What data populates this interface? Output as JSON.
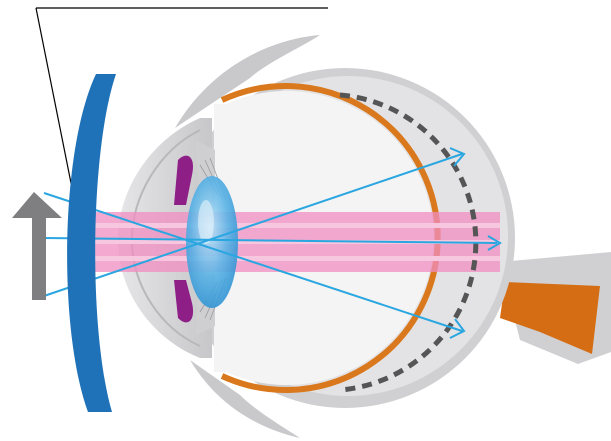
{
  "diagram": {
    "subject": "eye-cross-section-with-corrective-lens",
    "colors": {
      "background": "#ffffff",
      "sclera_outer": "#d0d0d2",
      "sclera_inner": "#ececed",
      "eye_interior": "#f4f4f5",
      "choroid": "#d9781c",
      "optic_nerve": "#d46d14",
      "iris": "#8e1f86",
      "lens": "#3fa4e0",
      "lens_highlight": "#bfe4f8",
      "corrective_lens": "#1f72b8",
      "light_band": "#f08ec0",
      "light_band_edge": "#f6bcd9",
      "ray": "#2aa6e0",
      "retina_dash": "#555555",
      "object_arrow": "#7f7f82",
      "leader_line": "#000000"
    },
    "focus_marks": [
      {
        "name": "upper-image-point"
      },
      {
        "name": "center-image-point"
      },
      {
        "name": "lower-image-point"
      }
    ]
  }
}
